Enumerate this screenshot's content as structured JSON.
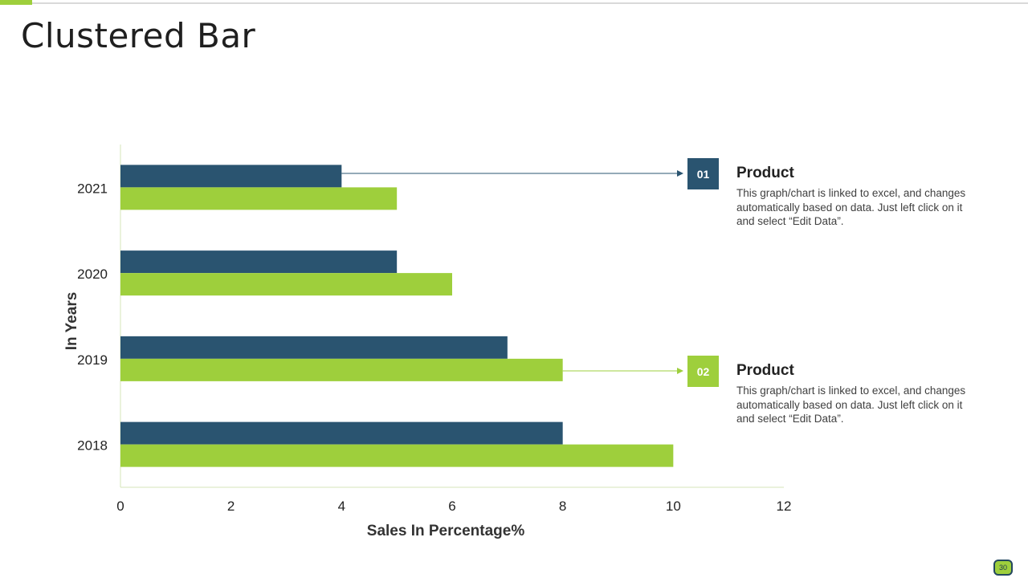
{
  "slide": {
    "title": "Clustered Bar",
    "page_number": "30"
  },
  "colors": {
    "series_dark": "#2a5470",
    "series_green": "#9ecf3c",
    "axis_line": "#d6e5b8",
    "text": "#222222"
  },
  "callouts": [
    {
      "badge": "01",
      "title": "Product",
      "text": "This graph/chart is linked to excel, and changes automatically based on data. Just left click on it and select “Edit Data”."
    },
    {
      "badge": "02",
      "title": "Product",
      "text": "This graph/chart is linked to excel, and changes automatically based on data. Just left click on it and select “Edit Data”."
    }
  ],
  "chart_data": {
    "type": "bar",
    "orientation": "horizontal",
    "title": "",
    "xlabel": "Sales In Percentage%",
    "ylabel": "In Years",
    "categories": [
      "2018",
      "2019",
      "2020",
      "2021"
    ],
    "series": [
      {
        "values": [
          8,
          7,
          5,
          4
        ]
      },
      {
        "values": [
          10,
          8,
          6,
          5
        ]
      }
    ],
    "xlim": [
      0,
      12
    ],
    "xticks": [
      0,
      2,
      4,
      6,
      8,
      10,
      12
    ],
    "grid": false,
    "legend": "none"
  }
}
